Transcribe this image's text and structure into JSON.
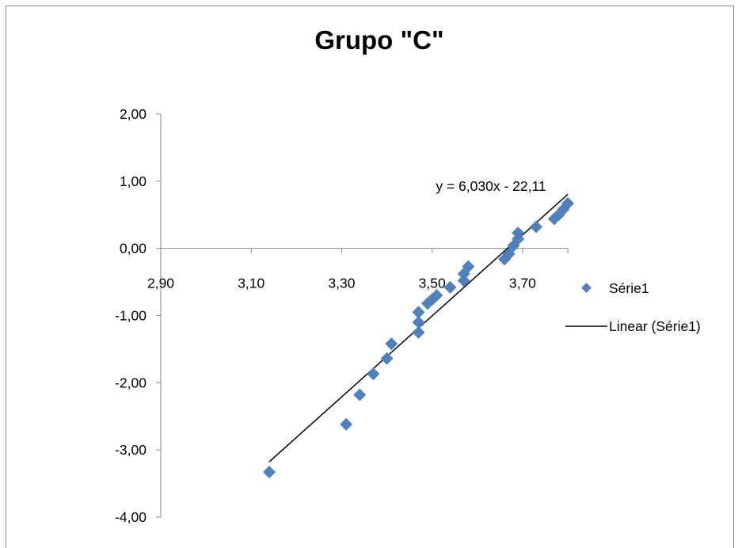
{
  "chart_data": {
    "type": "scatter",
    "title": "Grupo \"C\"",
    "xlabel": "",
    "ylabel": "",
    "xlim": [
      2.9,
      3.8
    ],
    "ylim": [
      -4.0,
      2.0
    ],
    "x_ticks": [
      "2,90",
      "3,10",
      "3,30",
      "3,50",
      "3,70"
    ],
    "x_tick_values": [
      2.9,
      3.1,
      3.3,
      3.5,
      3.7
    ],
    "y_ticks": [
      "2,00",
      "1,00",
      "0,00",
      "-1,00",
      "-2,00",
      "-3,00",
      "-4,00"
    ],
    "y_tick_values": [
      2,
      1,
      0,
      -1,
      -2,
      -3,
      -4
    ],
    "grid": false,
    "legend_position": "right",
    "series": [
      {
        "name": "Série1",
        "color": "#4F81BD",
        "marker": "diamond",
        "points": [
          [
            3.14,
            -3.33
          ],
          [
            3.31,
            -2.62
          ],
          [
            3.34,
            -2.18
          ],
          [
            3.37,
            -1.87
          ],
          [
            3.4,
            -1.64
          ],
          [
            3.41,
            -1.42
          ],
          [
            3.47,
            -1.25
          ],
          [
            3.47,
            -1.1
          ],
          [
            3.47,
            -0.95
          ],
          [
            3.49,
            -0.82
          ],
          [
            3.5,
            -0.76
          ],
          [
            3.51,
            -0.7
          ],
          [
            3.54,
            -0.58
          ],
          [
            3.57,
            -0.48
          ],
          [
            3.57,
            -0.38
          ],
          [
            3.58,
            -0.27
          ],
          [
            3.66,
            -0.16
          ],
          [
            3.67,
            -0.08
          ],
          [
            3.68,
            0.04
          ],
          [
            3.69,
            0.14
          ],
          [
            3.69,
            0.23
          ],
          [
            3.73,
            0.32
          ],
          [
            3.77,
            0.44
          ],
          [
            3.78,
            0.5
          ],
          [
            3.79,
            0.58
          ],
          [
            3.8,
            0.67
          ]
        ]
      }
    ],
    "trendline": {
      "name": "Linear (Série1)",
      "color": "#000000",
      "slope": 6.03,
      "intercept": -22.11,
      "x_range": [
        3.14,
        3.8
      ],
      "equation": "y = 6,030x - 22,11"
    }
  }
}
